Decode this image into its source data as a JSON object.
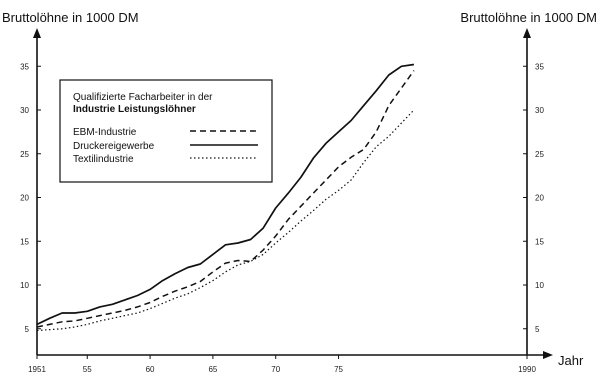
{
  "chart_data": {
    "type": "line",
    "ylabel_left": "Bruttolöhne in 1000 DM",
    "ylabel_right": "Bruttolöhne in 1000 DM",
    "xlabel": "Jahr",
    "xlim": [
      1951,
      1990
    ],
    "ylim": [
      2,
      38
    ],
    "x_ticks": [
      {
        "value": 1951,
        "label": "1951"
      },
      {
        "value": 1955,
        "label": "55"
      },
      {
        "value": 1960,
        "label": "60"
      },
      {
        "value": 1965,
        "label": "65"
      },
      {
        "value": 1970,
        "label": "70"
      },
      {
        "value": 1975,
        "label": "75"
      },
      {
        "value": 1990,
        "label": "1990"
      }
    ],
    "y_ticks": [
      5,
      10,
      15,
      20,
      25,
      30,
      35
    ],
    "legend": {
      "title_line1": "Qualifizierte Facharbeiter in der",
      "title_line2": "Industrie Leistungslöhner"
    },
    "series": [
      {
        "name": "EBM-Industrie",
        "style": "dashed",
        "x": [
          1951,
          1952,
          1953,
          1954,
          1955,
          1956,
          1957,
          1958,
          1959,
          1960,
          1961,
          1962,
          1963,
          1964,
          1965,
          1966,
          1967,
          1968,
          1969,
          1970,
          1971,
          1972,
          1973,
          1974,
          1975,
          1976,
          1977,
          1978,
          1979,
          1980,
          1981
        ],
        "values": [
          5.2,
          5.5,
          5.8,
          5.9,
          6.2,
          6.5,
          6.8,
          7.1,
          7.5,
          8.0,
          8.7,
          9.3,
          9.8,
          10.4,
          11.5,
          12.5,
          12.8,
          12.7,
          14.0,
          15.6,
          17.5,
          19.0,
          20.5,
          22.0,
          23.5,
          24.6,
          25.5,
          27.5,
          30.5,
          32.5,
          34.5
        ]
      },
      {
        "name": "Druckereigewerbe",
        "style": "solid",
        "x": [
          1951,
          1952,
          1953,
          1954,
          1955,
          1956,
          1957,
          1958,
          1959,
          1960,
          1961,
          1962,
          1963,
          1964,
          1965,
          1966,
          1967,
          1968,
          1969,
          1970,
          1971,
          1972,
          1973,
          1974,
          1975,
          1976,
          1977,
          1978,
          1979,
          1980,
          1981
        ],
        "values": [
          5.5,
          6.2,
          6.8,
          6.8,
          7.0,
          7.5,
          7.8,
          8.3,
          8.8,
          9.5,
          10.5,
          11.3,
          12.0,
          12.4,
          13.5,
          14.6,
          14.8,
          15.2,
          16.5,
          18.8,
          20.5,
          22.3,
          24.5,
          26.2,
          27.5,
          28.8,
          30.5,
          32.2,
          34.0,
          35.0,
          35.2
        ]
      },
      {
        "name": "Textilindustrie",
        "style": "dotted",
        "x": [
          1951,
          1952,
          1953,
          1954,
          1955,
          1956,
          1957,
          1958,
          1959,
          1960,
          1961,
          1962,
          1963,
          1964,
          1965,
          1966,
          1967,
          1968,
          1969,
          1970,
          1971,
          1972,
          1973,
          1974,
          1975,
          1976,
          1977,
          1978,
          1979,
          1980,
          1981
        ],
        "values": [
          4.8,
          4.9,
          5.0,
          5.2,
          5.5,
          5.9,
          6.2,
          6.5,
          6.8,
          7.3,
          7.9,
          8.5,
          9.0,
          9.7,
          10.5,
          11.5,
          12.3,
          12.7,
          13.5,
          14.8,
          16.0,
          17.3,
          18.5,
          19.8,
          20.8,
          22.0,
          24.0,
          25.8,
          27.0,
          28.5,
          30.0
        ]
      }
    ]
  }
}
